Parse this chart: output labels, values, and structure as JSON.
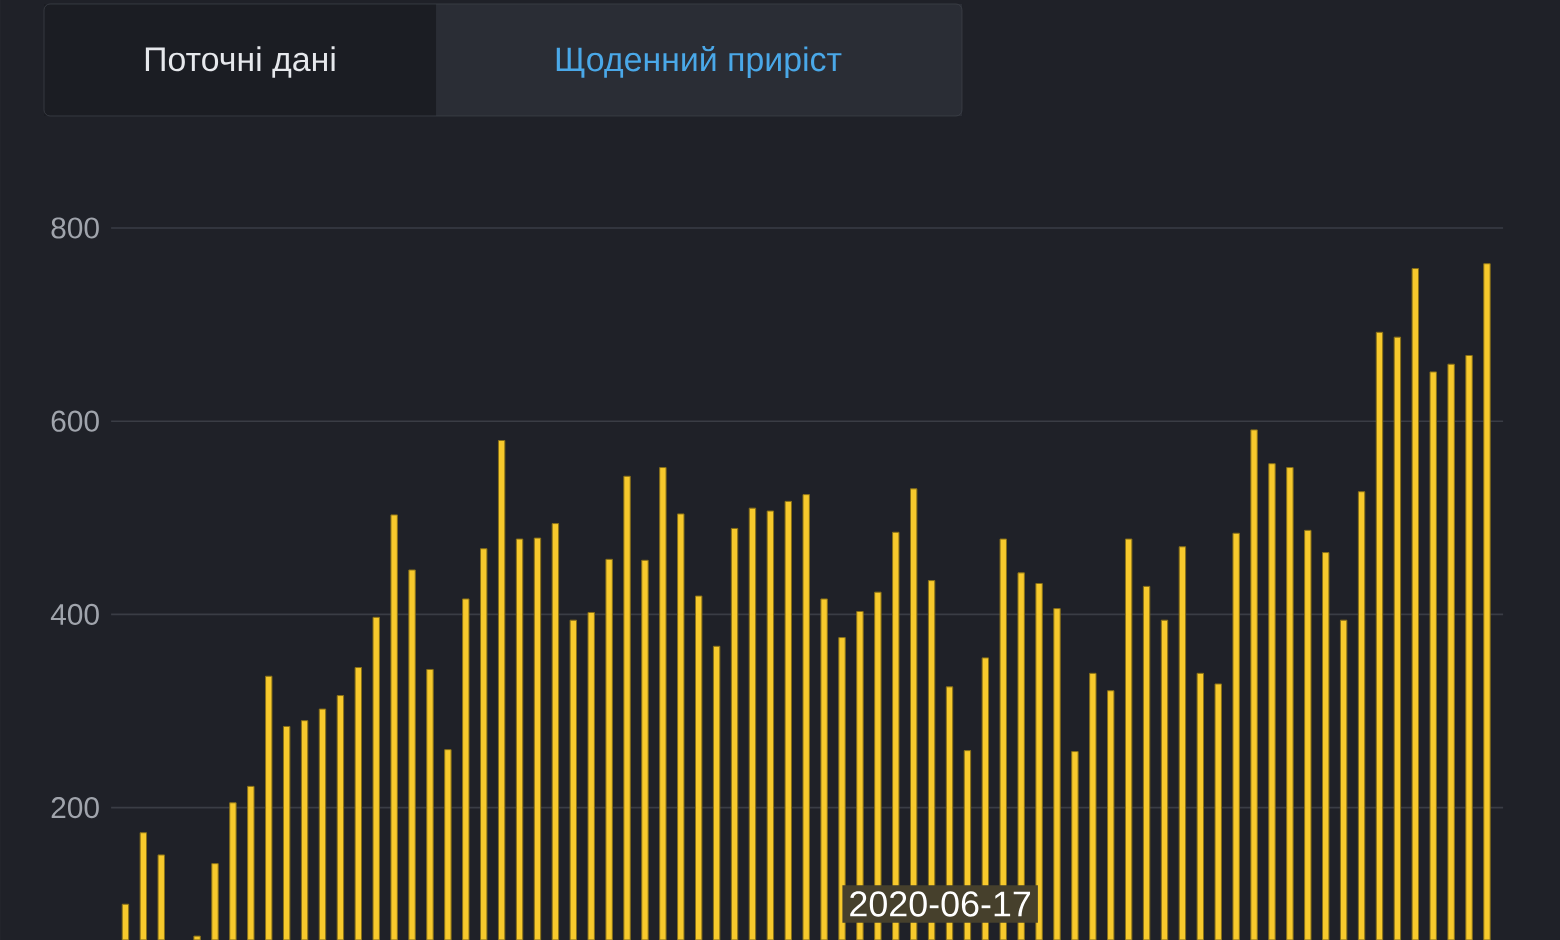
{
  "chart_data": {
    "type": "bar",
    "categories": [
      null,
      null,
      null,
      null,
      null,
      null,
      null,
      null,
      null,
      null,
      null,
      null,
      null,
      null,
      null,
      null,
      null,
      null,
      null,
      null,
      null,
      null,
      null,
      null,
      null,
      null,
      null,
      null,
      null,
      null,
      null,
      null,
      null,
      null,
      null,
      null,
      null,
      null,
      null,
      null,
      null,
      null,
      null,
      null,
      null,
      null,
      null,
      null,
      null,
      null,
      null,
      null,
      null,
      null,
      null,
      null,
      null,
      null,
      null,
      null,
      null,
      null,
      null,
      null,
      null,
      null,
      null,
      null,
      null,
      null,
      null,
      null,
      null,
      null,
      null,
      null,
      null
    ],
    "values": [
      100,
      174,
      151,
      null,
      67,
      142,
      205,
      222,
      336,
      284,
      290,
      302,
      316,
      345,
      397,
      503,
      446,
      343,
      260,
      416,
      468,
      580,
      478,
      479,
      494,
      394,
      402,
      457,
      543,
      456,
      552,
      504,
      419,
      367,
      489,
      510,
      507,
      517,
      524,
      416,
      376,
      403,
      423,
      485,
      530,
      435,
      325,
      259,
      355,
      478,
      443,
      432,
      406,
      258,
      339,
      321,
      478,
      429,
      394,
      470,
      339,
      328,
      484,
      591,
      556,
      552,
      487,
      464,
      394,
      527,
      692,
      687,
      758,
      651,
      659,
      668,
      763
    ],
    "color": "#f7c92c",
    "ylim": [
      63,
      800
    ],
    "yticks": [
      200,
      400,
      600,
      800
    ],
    "grid": "y",
    "annotations": [
      "Поточні дані",
      "Щоденний приріст",
      "2020-06-17"
    ]
  }
}
